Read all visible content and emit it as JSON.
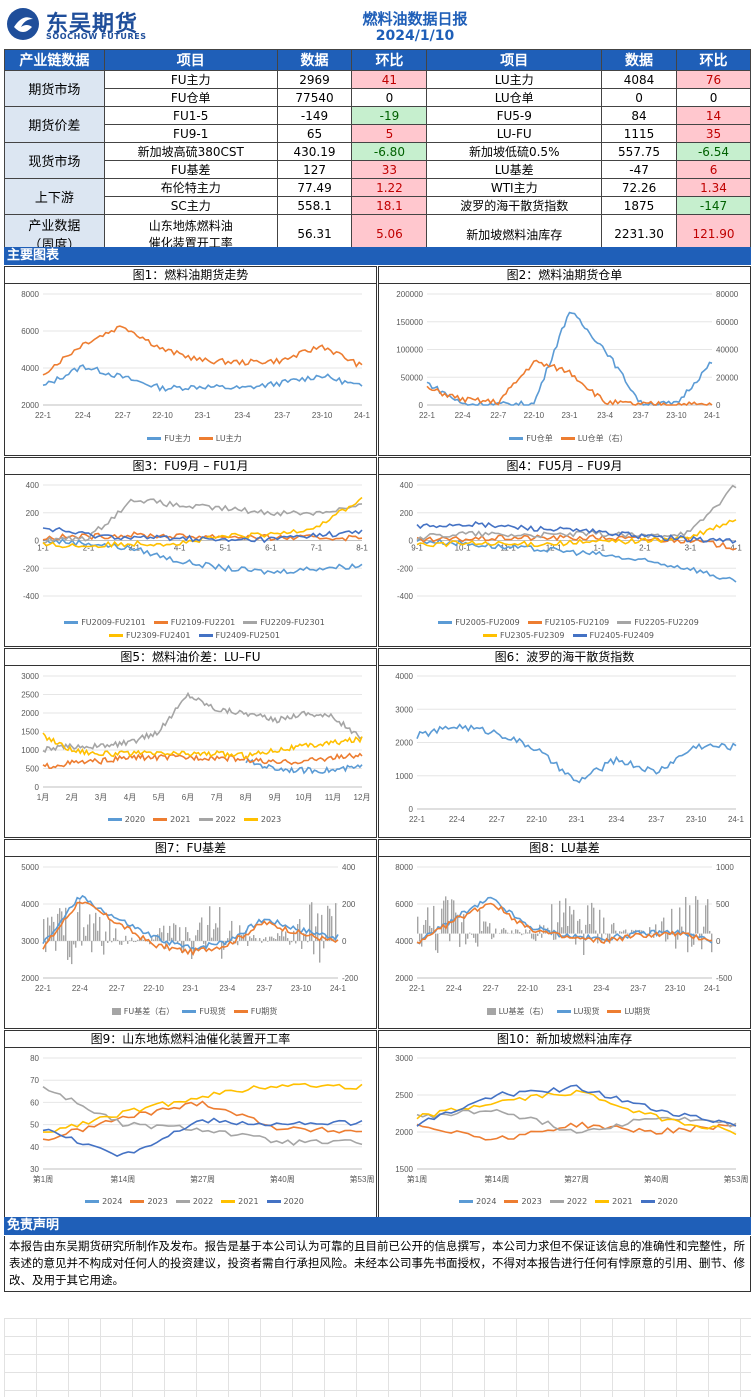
{
  "header": {
    "company_cn": "东吴期货",
    "company_en": "SOOCHOW FUTURES",
    "report_title": "燃料油数据日报",
    "date": "2024/1/10"
  },
  "colors": {
    "accent": "#1f5fb8",
    "up_bg": "#ffc7ce",
    "up_text": "#c00000",
    "down_bg": "#c6efce",
    "down_text": "#006100"
  },
  "table": {
    "headers": [
      "产业链数据",
      "项目",
      "数据",
      "环比",
      "项目",
      "数据",
      "环比"
    ],
    "groups": [
      {
        "category": "期货市场",
        "rows": [
          {
            "item1": "FU主力",
            "v1": "2969",
            "c1": "41",
            "d1": "up",
            "item2": "LU主力",
            "v2": "4084",
            "c2": "76",
            "d2": "up"
          },
          {
            "item1": "FU仓单",
            "v1": "77540",
            "c1": "0",
            "d1": "",
            "item2": "LU仓单",
            "v2": "0",
            "c2": "0",
            "d2": ""
          }
        ]
      },
      {
        "category": "期货价差",
        "rows": [
          {
            "item1": "FU1-5",
            "v1": "-149",
            "c1": "-19",
            "d1": "down",
            "item2": "FU5-9",
            "v2": "84",
            "c2": "14",
            "d2": "up"
          },
          {
            "item1": "FU9-1",
            "v1": "65",
            "c1": "5",
            "d1": "up",
            "item2": "LU-FU",
            "v2": "1115",
            "c2": "35",
            "d2": "up"
          }
        ]
      },
      {
        "category": "现货市场",
        "rows": [
          {
            "item1": "新加坡高硫380CST",
            "v1": "430.19",
            "c1": "-6.80",
            "d1": "down",
            "item2": "新加坡低硫0.5%",
            "v2": "557.75",
            "c2": "-6.54",
            "d2": "down"
          },
          {
            "item1": "FU基差",
            "v1": "127",
            "c1": "33",
            "d1": "up",
            "item2": "LU基差",
            "v2": "-47",
            "c2": "6",
            "d2": "up"
          }
        ]
      },
      {
        "category": "上下游",
        "rows": [
          {
            "item1": "布伦特主力",
            "v1": "77.49",
            "c1": "1.22",
            "d1": "up",
            "item2": "WTI主力",
            "v2": "72.26",
            "c2": "1.34",
            "d2": "up"
          },
          {
            "item1": "SC主力",
            "v1": "558.1",
            "c1": "18.1",
            "d1": "up",
            "item2": "波罗的海干散货指数",
            "v2": "1875",
            "c2": "-147",
            "d2": "down"
          }
        ]
      }
    ],
    "industry": {
      "category_line1": "产业数据",
      "category_line2": "（周度）",
      "item1_line1": "山东地炼燃料油",
      "item1_line2": "催化装置开工率",
      "v1": "56.31",
      "c1": "5.06",
      "d1": "up",
      "item2": "新加坡燃料油库存",
      "v2": "2231.30",
      "c2": "121.90",
      "d2": "up"
    }
  },
  "section_main": "主要图表",
  "section_disclaimer": "免责声明",
  "disclaimer": "本报告由东吴期货研究所制作及发布。报告是基于本公司认为可靠的且目前已公开的信息撰写，本公司力求但不保证该信息的准确性和完整性，所表述的意见并不构成对任何人的投资建议，投资者需自行承担风险。未经本公司事先书面授权，不得对本报告进行任何有悖原意的引用、删节、修改、及用于其它用途。",
  "charts": [
    {
      "title": "图1：燃料油期货走势",
      "legend": [
        "FU主力",
        "LU主力"
      ],
      "colors": [
        "#5b9bd5",
        "#ed7d31"
      ],
      "y_ticks": [
        "8000",
        "6000",
        "4000",
        "2000"
      ],
      "x_ticks": [
        "22-1",
        "22-4",
        "22-7",
        "22-10",
        "23-1",
        "23-4",
        "23-7",
        "23-10",
        "24-1"
      ]
    },
    {
      "title": "图2：燃料油期货仓单",
      "legend": [
        "FU仓单",
        "LU仓单（右）"
      ],
      "colors": [
        "#5b9bd5",
        "#ed7d31"
      ],
      "y_ticks": [
        "200000",
        "150000",
        "100000",
        "50000",
        "0"
      ],
      "y2_ticks": [
        "80000",
        "60000",
        "40000",
        "20000",
        "0"
      ],
      "x_ticks": [
        "22-1",
        "22-4",
        "22-7",
        "22-10",
        "23-1",
        "23-4",
        "23-7",
        "23-10",
        "24-1"
      ]
    },
    {
      "title": "图3：FU9月 – FU1月",
      "legend": [
        "FU2009-FU2101",
        "FU2109-FU2201",
        "FU2209-FU2301",
        "FU2309-FU2401",
        "FU2409-FU2501"
      ],
      "colors": [
        "#5b9bd5",
        "#ed7d31",
        "#a5a5a5",
        "#ffc000",
        "#4472c4"
      ],
      "y_ticks": [
        "400",
        "200",
        "0",
        "-200",
        "-400"
      ],
      "x_ticks": [
        "1-1",
        "2-1",
        "3-1",
        "4-1",
        "5-1",
        "6-1",
        "7-1",
        "8-1"
      ]
    },
    {
      "title": "图4：FU5月 – FU9月",
      "legend": [
        "FU2005-FU2009",
        "FU2105-FU2109",
        "FU2205-FU2209",
        "FU2305-FU2309",
        "FU2405-FU2409"
      ],
      "colors": [
        "#5b9bd5",
        "#ed7d31",
        "#a5a5a5",
        "#ffc000",
        "#4472c4"
      ],
      "y_ticks": [
        "400",
        "200",
        "0",
        "-200",
        "-400"
      ],
      "x_ticks": [
        "9-1",
        "10-1",
        "11-1",
        "12-1",
        "1-1",
        "2-1",
        "3-1",
        "4-1"
      ]
    },
    {
      "title": "图5：燃料油价差：LU–FU",
      "legend": [
        "2020",
        "2021",
        "2022",
        "2023"
      ],
      "colors": [
        "#5b9bd5",
        "#ed7d31",
        "#a5a5a5",
        "#ffc000"
      ],
      "y_ticks": [
        "3000",
        "2500",
        "2000",
        "1500",
        "1000",
        "500",
        "0"
      ],
      "x_ticks": [
        "1月",
        "2月",
        "3月",
        "4月",
        "5月",
        "6月",
        "7月",
        "8月",
        "9月",
        "10月",
        "11月",
        "12月"
      ]
    },
    {
      "title": "图6：波罗的海干散货指数",
      "legend": [],
      "colors": [
        "#5b9bd5"
      ],
      "y_ticks": [
        "4000",
        "3000",
        "2000",
        "1000",
        "0"
      ],
      "x_ticks": [
        "22-1",
        "22-4",
        "22-7",
        "22-10",
        "23-1",
        "23-4",
        "23-7",
        "23-10",
        "24-1"
      ]
    },
    {
      "title": "图7：FU基差",
      "legend": [
        "FU基差（右）",
        "FU现货",
        "FU期货"
      ],
      "colors": [
        "#a5a5a5",
        "#5b9bd5",
        "#ed7d31"
      ],
      "y_ticks": [
        "5000",
        "4000",
        "3000",
        "2000"
      ],
      "y2_ticks": [
        "400",
        "200",
        "0",
        "-200"
      ],
      "x_ticks": [
        "22-1",
        "22-4",
        "22-7",
        "22-10",
        "23-1",
        "23-4",
        "23-7",
        "23-10",
        "24-1"
      ]
    },
    {
      "title": "图8：LU基差",
      "legend": [
        "LU基差（右）",
        "LU现货",
        "LU期货"
      ],
      "colors": [
        "#a5a5a5",
        "#5b9bd5",
        "#ed7d31"
      ],
      "y_ticks": [
        "8000",
        "6000",
        "4000",
        "2000"
      ],
      "y2_ticks": [
        "1000",
        "500",
        "0",
        "-500"
      ],
      "x_ticks": [
        "22-1",
        "22-4",
        "22-7",
        "22-10",
        "23-1",
        "23-4",
        "23-7",
        "23-10",
        "24-1"
      ]
    },
    {
      "title": "图9：山东地炼燃料油催化装置开工率",
      "legend": [
        "2024",
        "2023",
        "2022",
        "2021",
        "2020"
      ],
      "colors": [
        "#5b9bd5",
        "#ed7d31",
        "#a5a5a5",
        "#ffc000",
        "#4472c4"
      ],
      "y_ticks": [
        "80",
        "70",
        "60",
        "50",
        "40",
        "30"
      ],
      "x_ticks": [
        "第1周",
        "第14周",
        "第27周",
        "第40周",
        "第53周"
      ]
    },
    {
      "title": "图10：新加坡燃料油库存",
      "legend": [
        "2024",
        "2023",
        "2022",
        "2021",
        "2020"
      ],
      "colors": [
        "#5b9bd5",
        "#ed7d31",
        "#a5a5a5",
        "#ffc000",
        "#4472c4"
      ],
      "y_ticks": [
        "3000",
        "2500",
        "2000",
        "1500"
      ],
      "x_ticks": [
        "第1周",
        "第14周",
        "第27周",
        "第40周",
        "第53周"
      ]
    }
  ],
  "chart_data": [
    {
      "type": "line",
      "title": "图1：燃料油期货走势",
      "ylim": [
        2000,
        8000
      ],
      "x": [
        "22-1",
        "22-4",
        "22-7",
        "22-10",
        "23-1",
        "23-4",
        "23-7",
        "23-10",
        "24-1"
      ],
      "series": [
        {
          "name": "FU主力",
          "values": [
            3000,
            4100,
            3500,
            2900,
            3000,
            2900,
            3200,
            3600,
            2969
          ]
        },
        {
          "name": "LU主力",
          "values": [
            3700,
            5300,
            6300,
            5000,
            4400,
            4300,
            4400,
            5200,
            4084
          ]
        }
      ]
    },
    {
      "type": "line",
      "title": "图2：燃料油期货仓单",
      "ylim": [
        0,
        200000
      ],
      "x": [
        "22-1",
        "22-4",
        "22-7",
        "22-10",
        "23-1",
        "23-4",
        "23-7",
        "23-10",
        "24-1"
      ],
      "series": [
        {
          "name": "FU仓单",
          "values": [
            40000,
            2000,
            1000,
            2000,
            170000,
            100000,
            3000,
            2000,
            77540
          ]
        },
        {
          "name": "LU仓单（右）",
          "values": [
            30000,
            10000,
            5000,
            78000,
            60000,
            5000,
            1000,
            2000,
            0
          ]
        }
      ]
    },
    {
      "type": "line",
      "title": "图3：FU9月 – FU1月",
      "ylim": [
        -400,
        400
      ],
      "x": [
        "1-1",
        "2-1",
        "3-1",
        "4-1",
        "5-1",
        "6-1",
        "7-1",
        "8-1"
      ],
      "series": [
        {
          "name": "FU2009-FU2101",
          "values": [
            0,
            -20,
            -60,
            -150,
            -200,
            -230,
            -200,
            -180
          ]
        },
        {
          "name": "FU2109-FU2201",
          "values": [
            20,
            30,
            40,
            30,
            30,
            20,
            20,
            20
          ]
        },
        {
          "name": "FU2209-FU2301",
          "values": [
            0,
            20,
            300,
            250,
            230,
            200,
            200,
            250
          ]
        },
        {
          "name": "FU2309-FU2401",
          "values": [
            -30,
            -40,
            -20,
            -20,
            30,
            40,
            100,
            300
          ]
        },
        {
          "name": "FU2409-FU2501",
          "values": [
            90,
            40,
            20,
            20,
            0,
            10,
            40,
            60
          ]
        }
      ]
    },
    {
      "type": "line",
      "title": "图4：FU5月 – FU9月",
      "ylim": [
        -400,
        400
      ],
      "x": [
        "9-1",
        "10-1",
        "11-1",
        "12-1",
        "1-1",
        "2-1",
        "3-1",
        "4-1"
      ],
      "series": [
        {
          "name": "FU2005-FU2009",
          "values": [
            0,
            -20,
            -50,
            -70,
            -100,
            -150,
            -200,
            -300
          ]
        },
        {
          "name": "FU2105-FU2109",
          "values": [
            0,
            10,
            20,
            20,
            20,
            10,
            0,
            -50
          ]
        },
        {
          "name": "FU2205-FU2209",
          "values": [
            20,
            50,
            40,
            40,
            50,
            30,
            60,
            400
          ]
        },
        {
          "name": "FU2305-FU2309",
          "values": [
            -30,
            -20,
            -30,
            -20,
            -10,
            0,
            20,
            150
          ]
        },
        {
          "name": "FU2405-FU2409",
          "values": [
            100,
            120,
            100,
            80,
            60,
            30,
            10,
            0
          ]
        }
      ]
    },
    {
      "type": "line",
      "title": "图5：燃料油价差：LU–FU",
      "ylim": [
        0,
        3000
      ],
      "x": [
        "1月",
        "2月",
        "3月",
        "4月",
        "5月",
        "6月",
        "7月",
        "8月",
        "9月",
        "10月",
        "11月",
        "12月"
      ],
      "series": [
        {
          "name": "2020",
          "values": [
            null,
            null,
            null,
            null,
            null,
            null,
            null,
            700,
            500,
            450,
            450,
            550
          ]
        },
        {
          "name": "2021",
          "values": [
            550,
            650,
            700,
            800,
            800,
            800,
            800,
            750,
            650,
            700,
            800,
            850
          ]
        },
        {
          "name": "2022",
          "values": [
            1000,
            1100,
            1100,
            1200,
            1500,
            2500,
            2100,
            2000,
            1800,
            2000,
            1900,
            1300
          ]
        },
        {
          "name": "2023",
          "values": [
            1400,
            1000,
            900,
            900,
            900,
            900,
            900,
            850,
            1000,
            1100,
            1200,
            1300
          ]
        }
      ]
    },
    {
      "type": "line",
      "title": "图6：波罗的海干散货指数",
      "ylim": [
        0,
        4000
      ],
      "x": [
        "22-1",
        "22-4",
        "22-7",
        "22-10",
        "23-1",
        "23-4",
        "23-7",
        "23-10",
        "24-1"
      ],
      "series": [
        {
          "name": "BDI",
          "values": [
            2200,
            2500,
            2300,
            1800,
            800,
            1500,
            1100,
            1900,
            1875
          ]
        }
      ]
    },
    {
      "type": "line",
      "title": "图7：FU基差",
      "ylim": [
        2000,
        5000
      ],
      "x": [
        "22-1",
        "22-4",
        "22-7",
        "22-10",
        "23-1",
        "23-4",
        "23-7",
        "23-10",
        "24-1"
      ],
      "series": [
        {
          "name": "FU现货",
          "values": [
            2900,
            4200,
            3600,
            3100,
            2800,
            3000,
            3600,
            3300,
            3100
          ]
        },
        {
          "name": "FU期货",
          "values": [
            2800,
            4100,
            3500,
            2900,
            2700,
            2900,
            3500,
            3200,
            2969
          ]
        }
      ]
    },
    {
      "type": "line",
      "title": "图8：LU基差",
      "ylim": [
        2000,
        8000
      ],
      "x": [
        "22-1",
        "22-4",
        "22-7",
        "22-10",
        "23-1",
        "23-4",
        "23-7",
        "23-10",
        "24-1"
      ],
      "series": [
        {
          "name": "LU现货",
          "values": [
            3900,
            5200,
            6300,
            4800,
            4300,
            4100,
            4400,
            4500,
            4037
          ]
        },
        {
          "name": "LU期货",
          "values": [
            3800,
            5100,
            6100,
            4700,
            4200,
            4000,
            4300,
            4400,
            4084
          ]
        }
      ]
    },
    {
      "type": "line",
      "title": "图9：山东地炼燃料油催化装置开工率",
      "ylim": [
        30,
        80
      ],
      "x": [
        "第1周",
        "第14周",
        "第27周",
        "第40周",
        "第53周"
      ],
      "series": [
        {
          "name": "2024",
          "values": [
            51,
            null,
            null,
            null,
            null
          ]
        },
        {
          "name": "2023",
          "values": [
            43,
            53,
            60,
            48,
            47
          ]
        },
        {
          "name": "2022",
          "values": [
            67,
            50,
            48,
            42,
            42
          ]
        },
        {
          "name": "2021",
          "values": [
            46,
            55,
            63,
            68,
            67
          ]
        },
        {
          "name": "2020",
          "values": [
            48,
            36,
            52,
            50,
            51
          ]
        }
      ]
    },
    {
      "type": "line",
      "title": "图10：新加坡燃料油库存",
      "ylim": [
        1500,
        3000
      ],
      "x": [
        "第1周",
        "第14周",
        "第27周",
        "第40周",
        "第53周"
      ],
      "series": [
        {
          "name": "2024",
          "values": [
            2231,
            null,
            null,
            null,
            null
          ]
        },
        {
          "name": "2023",
          "values": [
            2100,
            1900,
            2100,
            2000,
            2100
          ]
        },
        {
          "name": "2022",
          "values": [
            2200,
            2300,
            2000,
            2200,
            2100
          ]
        },
        {
          "name": "2021",
          "values": [
            2200,
            2400,
            2550,
            2200,
            2000
          ]
        },
        {
          "name": "2020",
          "values": [
            2100,
            2500,
            2600,
            2300,
            2100
          ]
        }
      ]
    }
  ]
}
